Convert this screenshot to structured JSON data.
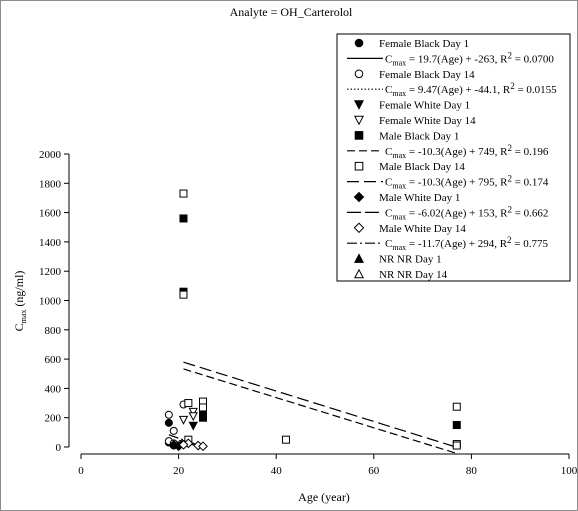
{
  "chart_data": {
    "type": "scatter",
    "title": "Analyte = OH_Carterolol",
    "xlabel": "Age (year)",
    "ylabel_main": "C",
    "ylabel_sub": "max",
    "ylabel_unit": " (ng/ml)",
    "xlim": [
      0,
      100
    ],
    "ylim": [
      0,
      2000
    ],
    "xticks": [
      0,
      20,
      40,
      60,
      80,
      100
    ],
    "yticks": [
      0,
      200,
      400,
      600,
      800,
      1000,
      1200,
      1400,
      1600,
      1800,
      2000
    ],
    "grid": false,
    "legend_position": "top-right",
    "legend": [
      {
        "type": "marker",
        "marker": "circle-filled",
        "label": "Female Black  Day 1"
      },
      {
        "type": "line",
        "dash": "solid",
        "pre": "C",
        "sub": "max",
        "post": " = 19.7(Age) + -263, R",
        "sup": "2",
        "post2": " = 0.0700"
      },
      {
        "type": "marker",
        "marker": "circle-open",
        "label": "Female Black  Day 14"
      },
      {
        "type": "line",
        "dash": "dotted",
        "pre": "C",
        "sub": "max",
        "post": " = 9.47(Age) + -44.1, R",
        "sup": "2",
        "post2": " = 0.0155"
      },
      {
        "type": "marker",
        "marker": "tri-down-filled",
        "label": "Female White  Day 1"
      },
      {
        "type": "marker",
        "marker": "tri-down-open",
        "label": "Female White  Day 14"
      },
      {
        "type": "marker",
        "marker": "square-filled",
        "label": "Male Black  Day 1"
      },
      {
        "type": "line",
        "dash": "dashed",
        "pre": "C",
        "sub": "max",
        "post": " = -10.3(Age) + 749, R",
        "sup": "2",
        "post2": " = 0.196"
      },
      {
        "type": "marker",
        "marker": "square-open",
        "label": "Male Black  Day 14"
      },
      {
        "type": "line",
        "dash": "longdash",
        "pre": "C",
        "sub": "max",
        "post": " = -10.3(Age) + 795, R",
        "sup": "2",
        "post2": " = 0.174"
      },
      {
        "type": "marker",
        "marker": "diamond-filled",
        "label": "Male White  Day 1"
      },
      {
        "type": "line",
        "dash": "dashgap",
        "pre": "C",
        "sub": "max",
        "post": " = -6.02(Age) + 153, R",
        "sup": "2",
        "post2": " = 0.662"
      },
      {
        "type": "marker",
        "marker": "diamond-open",
        "label": "Male White  Day 14"
      },
      {
        "type": "line",
        "dash": "dashdot",
        "pre": "C",
        "sub": "max",
        "post": " = -11.7(Age) + 294, R",
        "sup": "2",
        "post2": " = 0.775"
      },
      {
        "type": "marker",
        "marker": "tri-up-filled",
        "label": "NR NR  Day 1"
      },
      {
        "type": "marker",
        "marker": "tri-up-open",
        "label": "NR NR  Day 14"
      }
    ],
    "series": [
      {
        "name": "Female Black  Day 1",
        "marker": "circle-filled",
        "points": [
          [
            18,
            165
          ],
          [
            18,
            30
          ],
          [
            19,
            10
          ]
        ]
      },
      {
        "name": "Female Black  Day 14",
        "marker": "circle-open",
        "points": [
          [
            18,
            220
          ],
          [
            18,
            40
          ],
          [
            19,
            25
          ],
          [
            21,
            290
          ],
          [
            19,
            110
          ]
        ]
      },
      {
        "name": "Female White  Day 1",
        "marker": "tri-down-filled",
        "points": [
          [
            23,
            145
          ],
          [
            21,
            20
          ]
        ]
      },
      {
        "name": "Female White  Day 14",
        "marker": "tri-down-open",
        "points": [
          [
            23,
            240
          ],
          [
            23,
            210
          ],
          [
            21,
            185
          ]
        ]
      },
      {
        "name": "Male Black  Day 1",
        "marker": "square-filled",
        "points": [
          [
            21,
            1560
          ],
          [
            21,
            1060
          ],
          [
            25,
            230
          ],
          [
            25,
            200
          ],
          [
            77,
            150
          ]
        ]
      },
      {
        "name": "Male Black  Day 14",
        "marker": "square-open",
        "points": [
          [
            21,
            1730
          ],
          [
            21,
            1040
          ],
          [
            22,
            300
          ],
          [
            25,
            310
          ],
          [
            25,
            270
          ],
          [
            22,
            50
          ],
          [
            42,
            50
          ],
          [
            77,
            275
          ],
          [
            77,
            20
          ],
          [
            77,
            10
          ]
        ]
      },
      {
        "name": "Male White  Day 1",
        "marker": "diamond-filled",
        "points": [
          [
            19,
            15
          ],
          [
            20,
            5
          ]
        ]
      },
      {
        "name": "Male White  Day 14",
        "marker": "diamond-open",
        "points": [
          [
            22,
            25
          ],
          [
            24,
            10
          ],
          [
            25,
            5
          ],
          [
            21,
            15
          ]
        ]
      }
    ],
    "lines": [
      {
        "dash": "dashed",
        "x": [
          21,
          77
        ],
        "y": [
          533,
          -44
        ]
      },
      {
        "dash": "longdash",
        "x": [
          21,
          77
        ],
        "y": [
          579,
          -2
        ]
      },
      {
        "dash": "dashgap",
        "x": [
          18,
          25
        ],
        "y": [
          45,
          3
        ]
      },
      {
        "dash": "dashdot",
        "x": [
          18,
          25
        ],
        "y": [
          83,
          2
        ]
      }
    ]
  }
}
